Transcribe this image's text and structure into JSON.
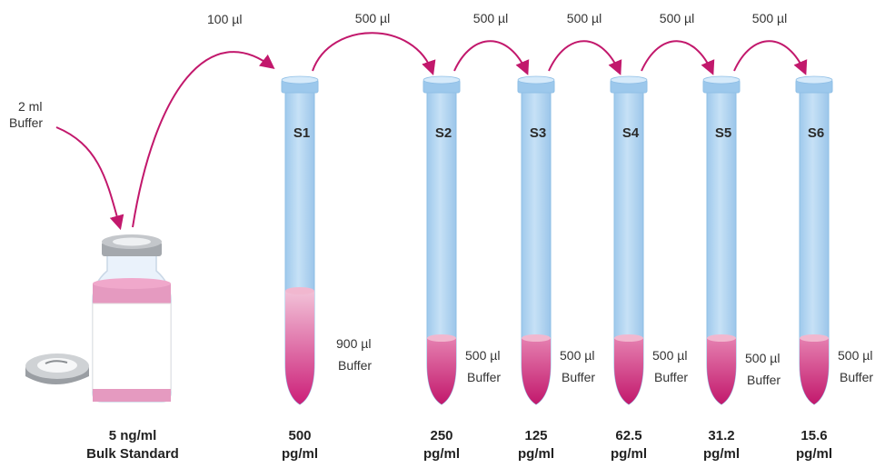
{
  "stock": {
    "buffer_label_line1": "2 ml",
    "buffer_label_line2": "Buffer",
    "transfer_label": "100 µl",
    "conc_line1": "5 ng/ml",
    "conc_line2": "Bulk Standard"
  },
  "transfers": [
    "500 µl",
    "500 µl",
    "500 µl",
    "500 µl",
    "500 µl"
  ],
  "tubes": [
    {
      "id": "S1",
      "buffer_line1": "900 µl",
      "buffer_line2": "Buffer",
      "conc_line1": "500",
      "conc_line2": "pg/ml"
    },
    {
      "id": "S2",
      "buffer_line1": "500 µl",
      "buffer_line2": "Buffer",
      "conc_line1": "250",
      "conc_line2": "pg/ml"
    },
    {
      "id": "S3",
      "buffer_line1": "500 µl",
      "buffer_line2": "Buffer",
      "conc_line1": "125",
      "conc_line2": "pg/ml"
    },
    {
      "id": "S4",
      "buffer_line1": "500 µl",
      "buffer_line2": "Buffer",
      "conc_line1": "62.5",
      "conc_line2": "pg/ml"
    },
    {
      "id": "S5",
      "buffer_line1": "500 µl",
      "buffer_line2": "Buffer",
      "conc_line1": "31.2",
      "conc_line2": "pg/ml"
    },
    {
      "id": "S6",
      "buffer_line1": "500 µl",
      "buffer_line2": "Buffer",
      "conc_line1": "15.6",
      "conc_line2": "pg/ml"
    }
  ],
  "colors": {
    "tube": "#b3d5f0",
    "tube_edge": "#8fbfe6",
    "liquid": "#d63a86",
    "liquid_light": "#f1b7cf",
    "arrow": "#c2186c"
  }
}
